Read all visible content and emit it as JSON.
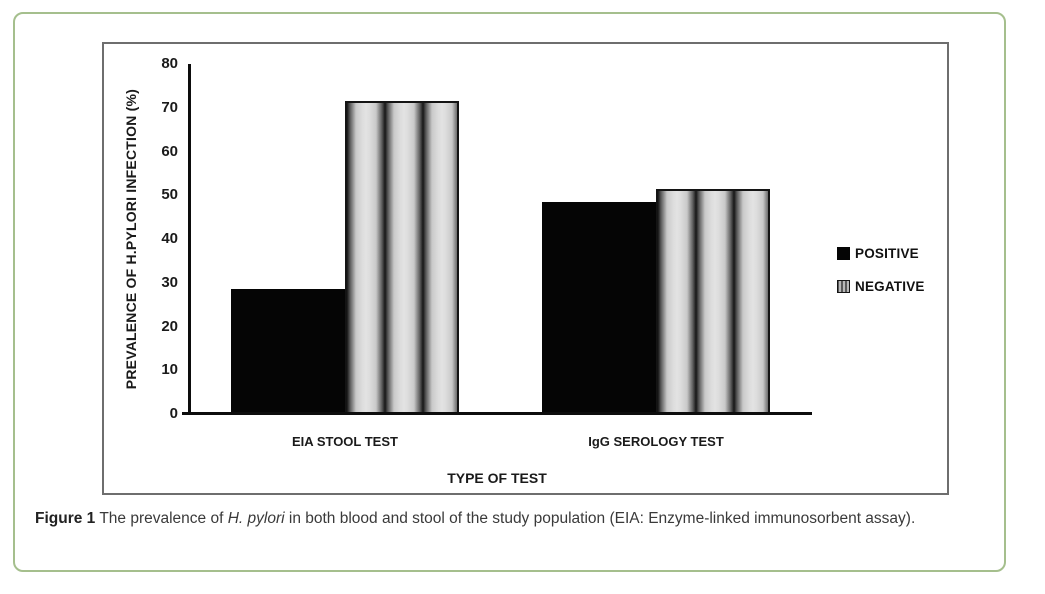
{
  "figure": {
    "caption": {
      "label": "Figure 1",
      "text_before_italic": " The prevalence of ",
      "italic_term": "H. pylori",
      "text_after_italic": " in both blood and stool of the study population (EIA: Enzyme-linked immunosorbent assay)."
    },
    "frame_border_color": "#a5bf8d",
    "chart_box_border_color": "#6e6e6e"
  },
  "chart_data": {
    "type": "bar",
    "title": "",
    "categories": [
      "EIA STOOL TEST",
      "IgG SEROLOGY TEST"
    ],
    "series": [
      {
        "name": "POSITIVE",
        "values": [
          28.5,
          48.5
        ],
        "swatch": "solid-black",
        "color": "#050505"
      },
      {
        "name": "NEGATIVE",
        "values": [
          71.5,
          51.5
        ],
        "swatch": "vertical-stripes",
        "color": "#d6d6d6"
      }
    ],
    "xlabel": "TYPE OF TEST",
    "ylabel": "PREVALENCE OF H.PYLORI INFECTION (%)",
    "ylim": [
      0,
      80
    ],
    "yticks": [
      0,
      10,
      20,
      30,
      40,
      50,
      60,
      70,
      80
    ],
    "grid": false,
    "legend_position": "right-inside"
  }
}
